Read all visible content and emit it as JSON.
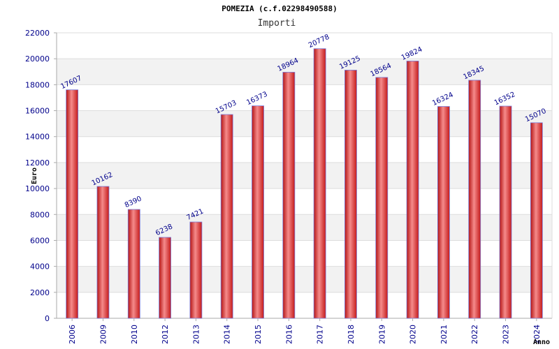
{
  "chart_data": {
    "type": "bar",
    "title": "POMEZIA (c.f.02298490588)",
    "subtitle": "Importi",
    "xlabel": "Anno",
    "ylabel": "Euro",
    "ylim": [
      0,
      22000
    ],
    "yticks": [
      0,
      2000,
      4000,
      6000,
      8000,
      10000,
      12000,
      14000,
      16000,
      18000,
      20000,
      22000
    ],
    "categories": [
      "2006",
      "2009",
      "2010",
      "2012",
      "2013",
      "2014",
      "2015",
      "2016",
      "2017",
      "2018",
      "2019",
      "2020",
      "2021",
      "2022",
      "2023",
      "2024"
    ],
    "values": [
      17607,
      10162,
      8390,
      6238,
      7421,
      15703,
      16373,
      18964,
      20778,
      19125,
      18564,
      19824,
      16324,
      18345,
      16352,
      15070
    ],
    "grid": true,
    "legend": "none"
  },
  "colors": {
    "bar_edge": "#b51515",
    "bar_mid": "#f58b8b",
    "bar_top": "#7a7ad8",
    "band_alt": "#f2f2f2",
    "grid": "#dddddd",
    "axis": "#aaaaaa",
    "text_blue": "#00008b"
  }
}
